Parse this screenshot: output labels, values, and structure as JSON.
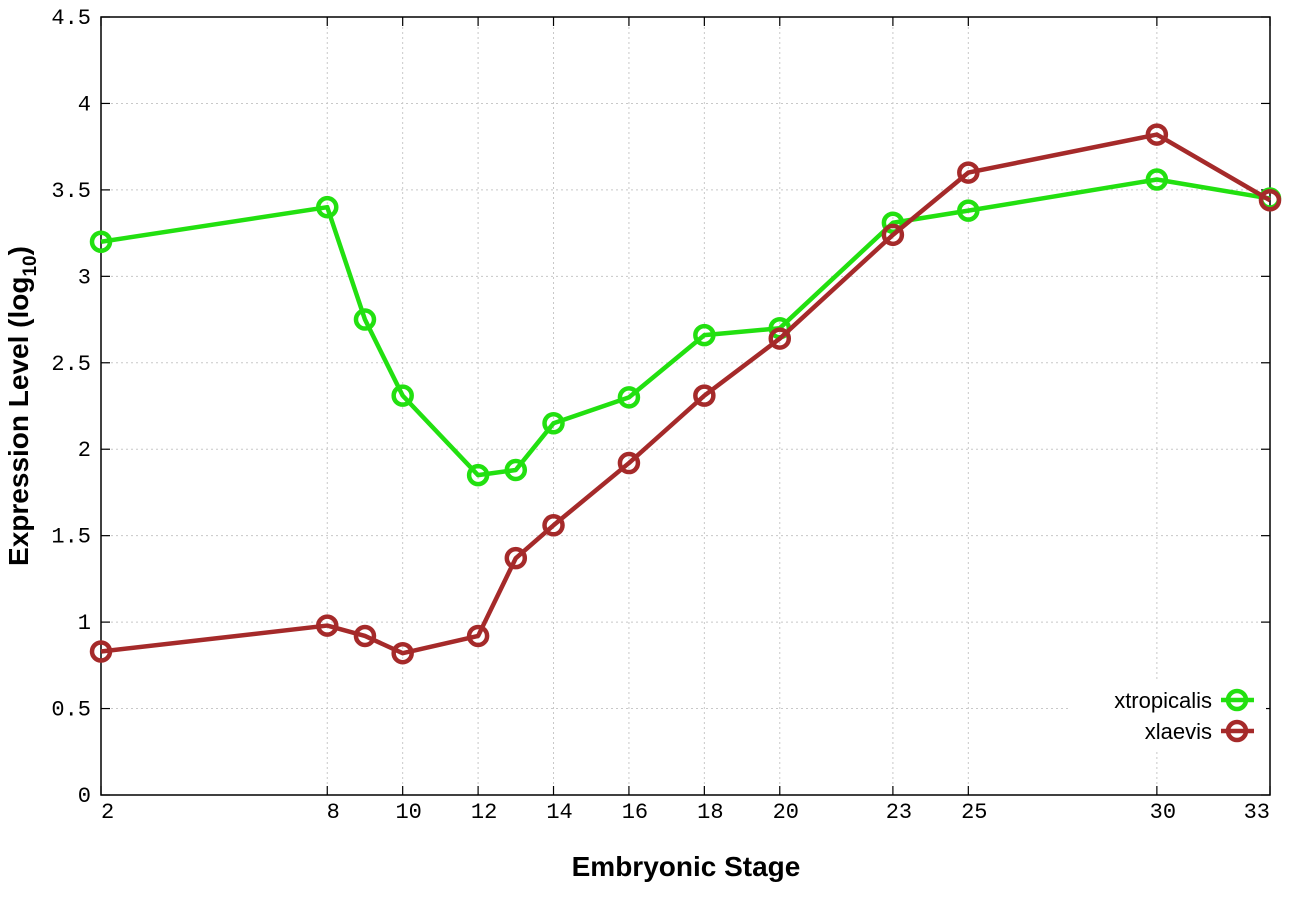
{
  "chart_data": {
    "type": "line",
    "xlabel": "Embryonic Stage",
    "ylabel_main": "Expression Level (log",
    "ylabel_sub": "10",
    "ylabel_close": ")",
    "xlim": [
      2,
      33
    ],
    "ylim": [
      0,
      4.5
    ],
    "x_ticks": [
      "2",
      "8",
      "10",
      "12",
      "14",
      "16",
      "18",
      "20",
      "23",
      "25",
      "30",
      "33"
    ],
    "y_ticks": [
      "0",
      "0.5",
      "1",
      "1.5",
      "2",
      "2.5",
      "3",
      "3.5",
      "4",
      "4.5"
    ],
    "grid": true,
    "legend_position": "bottom-right",
    "x": [
      2,
      8,
      9,
      10,
      12,
      13,
      14,
      16,
      18,
      20,
      23,
      25,
      30,
      33
    ],
    "series": [
      {
        "name": "xtropicalis",
        "color": "#22e010",
        "values": [
          3.2,
          3.4,
          2.75,
          2.31,
          1.85,
          1.88,
          2.15,
          2.3,
          2.66,
          2.7,
          3.31,
          3.38,
          3.56,
          3.45
        ]
      },
      {
        "name": "xlaevis",
        "color": "#a52a2a",
        "values": [
          0.83,
          0.98,
          0.92,
          0.82,
          0.92,
          1.37,
          1.56,
          1.92,
          2.31,
          2.64,
          3.24,
          3.6,
          3.82,
          3.44
        ]
      }
    ]
  }
}
